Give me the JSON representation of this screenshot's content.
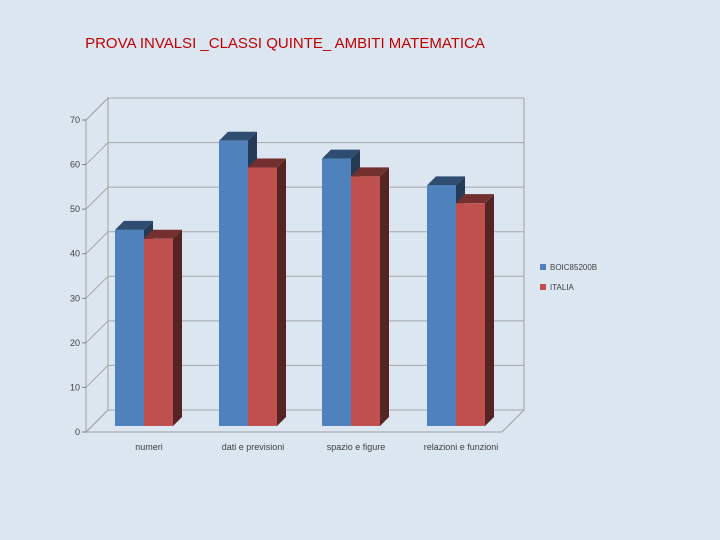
{
  "chart_data": {
    "type": "bar",
    "title": "PROVA INVALSI _CLASSI QUINTE_ AMBITI MATEMATICA",
    "categories": [
      "numeri",
      "dati e previsioni",
      "spazio e figure",
      "relazioni e funzioni"
    ],
    "series": [
      {
        "name": "BOIC85200B",
        "values": [
          44,
          64,
          60,
          54
        ],
        "color": "#4f81bd"
      },
      {
        "name": "ITALIA",
        "values": [
          42,
          58,
          56,
          50
        ],
        "color": "#c0504d"
      }
    ],
    "ylim": [
      0,
      70
    ],
    "yticks": [
      0,
      10,
      20,
      30,
      40,
      50,
      60,
      70
    ],
    "grid": true,
    "legend": "right",
    "style": "3d-column"
  }
}
